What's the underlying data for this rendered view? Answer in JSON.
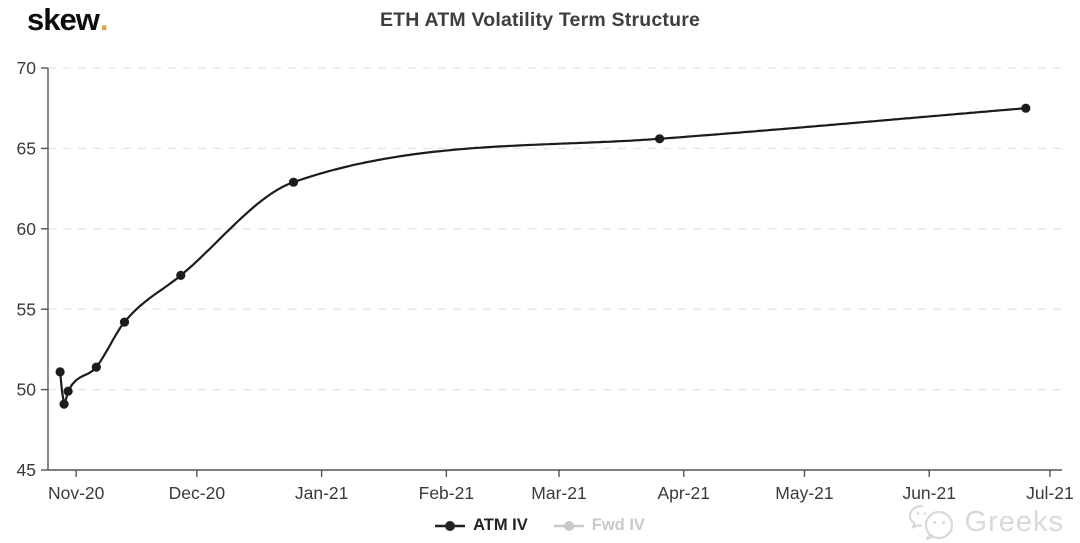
{
  "logo": {
    "text": "skew",
    "dot": "."
  },
  "title": "ETH ATM Volatility Term Structure",
  "chart_data": {
    "type": "line",
    "title": "ETH ATM Volatility Term Structure",
    "x_axis": {
      "start_date": "2020-10-25",
      "end_date": "2021-07-04",
      "ticks": [
        {
          "date": "2020-11-01",
          "label": "Nov-20"
        },
        {
          "date": "2020-12-01",
          "label": "Dec-20"
        },
        {
          "date": "2021-01-01",
          "label": "Jan-21"
        },
        {
          "date": "2021-02-01",
          "label": "Feb-21"
        },
        {
          "date": "2021-03-01",
          "label": "Mar-21"
        },
        {
          "date": "2021-04-01",
          "label": "Apr-21"
        },
        {
          "date": "2021-05-01",
          "label": "May-21"
        },
        {
          "date": "2021-06-01",
          "label": "Jun-21"
        },
        {
          "date": "2021-07-01",
          "label": "Jul-21"
        }
      ]
    },
    "y_axis": {
      "min": 45,
      "max": 70,
      "ticks": [
        45,
        50,
        55,
        60,
        65,
        70
      ],
      "grid": "horizontal-dashed"
    },
    "series": [
      {
        "name": "ATM IV",
        "color": "#1c1c1c",
        "visible": true,
        "points": [
          {
            "date": "2020-10-28",
            "value": 51.1
          },
          {
            "date": "2020-10-29",
            "value": 49.1
          },
          {
            "date": "2020-10-30",
            "value": 49.9
          },
          {
            "date": "2020-11-06",
            "value": 51.4
          },
          {
            "date": "2020-11-13",
            "value": 54.2
          },
          {
            "date": "2020-11-27",
            "value": 57.1
          },
          {
            "date": "2020-12-25",
            "value": 62.9
          },
          {
            "date": "2021-03-26",
            "value": 65.6
          },
          {
            "date": "2021-06-25",
            "value": 67.5
          }
        ]
      },
      {
        "name": "Fwd IV",
        "color": "#c9c9c9",
        "visible": false,
        "points": []
      }
    ],
    "legend_position": "bottom-center"
  },
  "watermark": {
    "text": "Greeks"
  },
  "colors": {
    "accent_gold": "#d9a441",
    "series_line": "#1c1c1c",
    "grid": "#e4e4e4",
    "axis": "#555555",
    "tick_label": "#3a3a3a",
    "title": "#3e3e3e",
    "legend_inactive": "#c9c9c9",
    "watermark": "#d9d9d9"
  }
}
